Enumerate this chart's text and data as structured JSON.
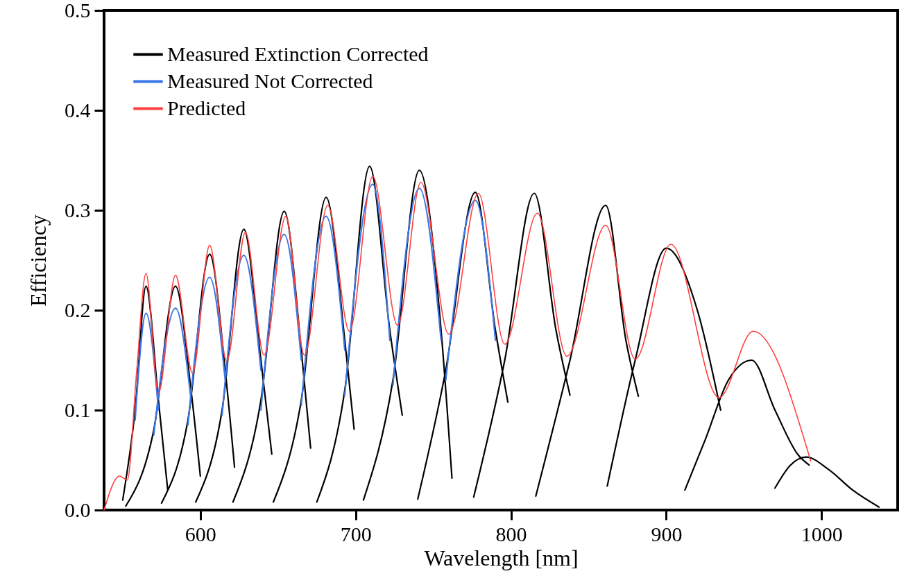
{
  "chart_data": {
    "type": "line",
    "xlabel": "Wavelength [nm]",
    "ylabel": "Efficiency",
    "xlim": [
      538,
      1049
    ],
    "ylim": [
      0,
      0.5
    ],
    "xticks": [
      600,
      700,
      800,
      900,
      1000
    ],
    "yticks": [
      {
        "value": 0,
        "label": "0.0"
      },
      0.1,
      0.2,
      0.3,
      0.4,
      0.5
    ],
    "legend": "top left",
    "grid": false,
    "line_style": "solid",
    "series": [
      {
        "name": "Measured Extinction Corrected",
        "color": "#000000",
        "x": [
          550,
          558,
          565,
          573,
          579,
          null,
          552,
          570,
          584,
          594,
          600,
          null,
          575,
          592,
          606,
          616,
          622,
          null,
          597,
          614,
          628,
          639,
          646,
          null,
          621,
          639,
          654,
          665,
          671,
          null,
          647,
          665,
          681,
          693,
          699,
          null,
          675,
          693,
          709,
          722,
          730,
          null,
          705,
          724,
          741,
          755,
          762,
          null,
          740,
          758,
          777,
          790,
          798,
          null,
          776,
          796,
          815,
          829,
          838,
          null,
          816,
          838,
          861,
          874,
          882,
          null,
          862,
          880,
          900,
          920,
          935,
          null,
          912,
          925,
          940,
          955,
          970,
          985,
          992,
          null,
          970,
          980,
          990,
          1005,
          1020,
          1037
        ],
        "values": [
          0.01,
          0.1,
          0.224,
          0.11,
          0.02,
          null,
          0.004,
          0.08,
          0.224,
          0.12,
          0.034,
          null,
          0.007,
          0.09,
          0.256,
          0.14,
          0.043,
          null,
          0.008,
          0.1,
          0.281,
          0.15,
          0.056,
          null,
          0.008,
          0.11,
          0.299,
          0.16,
          0.062,
          null,
          0.008,
          0.11,
          0.313,
          0.17,
          0.081,
          null,
          0.008,
          0.12,
          0.344,
          0.18,
          0.095,
          null,
          0.01,
          0.13,
          0.34,
          0.18,
          0.032,
          null,
          0.011,
          0.14,
          0.318,
          0.18,
          0.108,
          null,
          0.013,
          0.15,
          0.317,
          0.18,
          0.115,
          null,
          0.014,
          0.15,
          0.305,
          0.17,
          0.114,
          null,
          0.024,
          0.15,
          0.262,
          0.2,
          0.1,
          null,
          0.02,
          0.07,
          0.13,
          0.15,
          0.1,
          0.055,
          0.045,
          null,
          0.022,
          0.045,
          0.053,
          0.04,
          0.02,
          0.003
        ]
      },
      {
        "name": "Measured Not Corrected",
        "color": "#3b78e7",
        "x": [
          558,
          565,
          573,
          null,
          570,
          584,
          594,
          null,
          592,
          606,
          616,
          null,
          614,
          628,
          639,
          null,
          639,
          654,
          665,
          null,
          665,
          681,
          693,
          null,
          693,
          711,
          722,
          null,
          724,
          741,
          755,
          null,
          758,
          777,
          790
        ],
        "values": [
          0.09,
          0.197,
          0.1,
          null,
          0.075,
          0.202,
          0.11,
          null,
          0.085,
          0.233,
          0.13,
          null,
          0.095,
          0.255,
          0.14,
          null,
          0.1,
          0.276,
          0.15,
          null,
          0.105,
          0.294,
          0.16,
          null,
          0.115,
          0.326,
          0.17,
          null,
          0.125,
          0.322,
          0.17,
          null,
          0.13,
          0.31,
          0.17
        ]
      },
      {
        "name": "Predicted",
        "color": "#ff4040",
        "x": [
          538,
          548,
          553,
          559,
          565,
          573,
          584,
          595,
          606,
          617,
          629,
          641,
          655,
          667,
          682,
          696,
          711,
          727,
          742,
          760,
          779,
          796,
          817,
          836,
          861,
          880,
          903,
          934,
          956,
          993
        ],
        "values": [
          0,
          0.034,
          0.03,
          0.139,
          0.237,
          0.117,
          0.235,
          0.137,
          0.265,
          0.149,
          0.278,
          0.155,
          0.294,
          0.155,
          0.305,
          0.179,
          0.334,
          0.185,
          0.328,
          0.176,
          0.317,
          0.166,
          0.297,
          0.154,
          0.285,
          0.151,
          0.266,
          0.1125,
          0.179,
          0.049
        ]
      }
    ]
  }
}
